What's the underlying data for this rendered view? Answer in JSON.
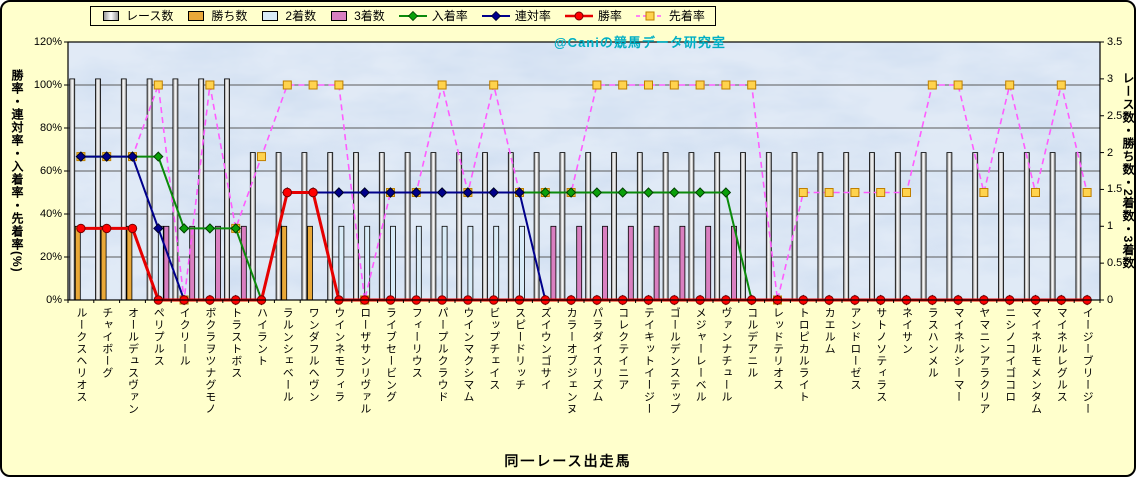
{
  "watermark": "@Caniの競馬データ研究室",
  "legend": [
    {
      "label": "レース数",
      "swatch": "race-bar"
    },
    {
      "label": "勝ち数",
      "swatch": "win-bar"
    },
    {
      "label": "2着数",
      "swatch": "second-bar"
    },
    {
      "label": "3着数",
      "swatch": "third-bar"
    },
    {
      "label": "入着率",
      "swatch": "place-line"
    },
    {
      "label": "連対率",
      "swatch": "quinella-line"
    },
    {
      "label": "勝率",
      "swatch": "win-line"
    },
    {
      "label": "先着率",
      "swatch": "first-line"
    }
  ],
  "colors": {
    "page_bg": "#FFFFCC",
    "plot_bg": "#C8D9EF",
    "grid": "#5A5A5A",
    "race_bar_center": "#FFFFFF",
    "race_bar_edge": "#909090",
    "win_bar": "#E9A838",
    "second_bar": "#D9ECF8",
    "third_bar": "#D97FC0",
    "place_line": "#0B8A0B",
    "place_marker": "#0AA00A",
    "quinella_line": "#00008B",
    "win_line": "#E60000",
    "win_marker": "#FF0000",
    "first_line": "#FF5CFF",
    "first_marker_fill": "#FFD34D",
    "first_marker_stroke": "#BF7F00",
    "watermark": "#00AFC4",
    "text": "#000000"
  },
  "chart_data": {
    "type": "combo-bar-line",
    "grid": true,
    "legend_position": "top",
    "xlabel": "同一レース出走馬",
    "left_axis": {
      "title": "勝率・連対率・入着率・先着率(%)",
      "min": 0,
      "max": 120,
      "step": 20,
      "ticks": [
        "0%",
        "20%",
        "40%",
        "60%",
        "80%",
        "100%",
        "120%"
      ]
    },
    "right_axis": {
      "title": "レース数・勝ち数・2着数・3着数",
      "min": 0,
      "max": 3.5,
      "step": 0.5,
      "ticks": [
        "0",
        "0.5",
        "1",
        "1.5",
        "2",
        "2.5",
        "3",
        "3.5"
      ]
    },
    "categories": [
      "ルークスヘリオス",
      "チャイボーグ",
      "オールデュスヴァン",
      "ペリプルス",
      "イクリール",
      "ボクラヲツナグモノ",
      "トラストボス",
      "ハイラント",
      "ラルンシェベール",
      "ワンダフルヘヴン",
      "ウインネモフィラ",
      "ローザサンリヴァル",
      "ライブセービング",
      "フィーリウス",
      "パープルクラウド",
      "ウインマクシマム",
      "ビップチェイス",
      "スピードリッチ",
      "ズイウンゴサイ",
      "カラーオブジェンヌ",
      "パラダイスリズム",
      "コレクテイニア",
      "テイキットイージー",
      "ゴールデンステップ",
      "メジャーレーベル",
      "ヴァンナチュール",
      "コルデアニル",
      "レッドテリオス",
      "トロピカルライト",
      "カエルム",
      "アンドローゼス",
      "サトノソティラス",
      "ネイサン",
      "ラスハンメル",
      "マイネルシーマー",
      "ヤマニンアラクリア",
      "ニシノコイゴコロ",
      "マイネルモメンタム",
      "マイネルレグルス",
      "イージーブリージー"
    ],
    "series": [
      {
        "name": "レース数",
        "type": "bar",
        "axis": "right",
        "values": [
          3,
          3,
          3,
          3,
          3,
          3,
          3,
          2,
          2,
          2,
          2,
          2,
          2,
          2,
          2,
          2,
          2,
          2,
          2,
          2,
          2,
          2,
          2,
          2,
          2,
          2,
          2,
          2,
          2,
          2,
          2,
          2,
          2,
          2,
          2,
          2,
          2,
          2,
          2,
          2
        ]
      },
      {
        "name": "勝ち数",
        "type": "bar",
        "axis": "right",
        "values": [
          1,
          1,
          1,
          0,
          0,
          0,
          0,
          0,
          1,
          1,
          0,
          0,
          0,
          0,
          0,
          0,
          0,
          0,
          0,
          0,
          0,
          0,
          0,
          0,
          0,
          0,
          0,
          0,
          0,
          0,
          0,
          0,
          0,
          0,
          0,
          0,
          0,
          0,
          0,
          0
        ]
      },
      {
        "name": "2着数",
        "type": "bar",
        "axis": "right",
        "values": [
          0,
          0,
          0,
          1,
          0,
          0,
          0,
          0,
          0,
          0,
          1,
          1,
          1,
          1,
          1,
          1,
          1,
          1,
          0,
          0,
          0,
          0,
          0,
          0,
          0,
          0,
          0,
          0,
          0,
          0,
          0,
          0,
          0,
          0,
          0,
          0,
          0,
          0,
          0,
          0
        ]
      },
      {
        "name": "3着数",
        "type": "bar",
        "axis": "right",
        "values": [
          0,
          0,
          0,
          1,
          1,
          1,
          1,
          0,
          0,
          0,
          0,
          0,
          0,
          0,
          0,
          0,
          0,
          0,
          1,
          1,
          1,
          1,
          1,
          1,
          1,
          1,
          0,
          0,
          0,
          0,
          0,
          0,
          0,
          0,
          0,
          0,
          0,
          0,
          0,
          0
        ]
      },
      {
        "name": "入着率",
        "type": "line",
        "marker": "diamond",
        "axis": "left",
        "values": [
          66.7,
          66.7,
          66.7,
          66.7,
          33.3,
          33.3,
          33.3,
          0,
          50,
          50,
          50,
          50,
          50,
          50,
          50,
          50,
          50,
          50,
          50,
          50,
          50,
          50,
          50,
          50,
          50,
          50,
          0,
          0,
          0,
          0,
          0,
          0,
          0,
          0,
          0,
          0,
          0,
          0,
          0,
          0
        ]
      },
      {
        "name": "連対率",
        "type": "line",
        "marker": "diamond",
        "axis": "left",
        "values": [
          66.7,
          66.7,
          66.7,
          33.3,
          0,
          0,
          0,
          0,
          50,
          50,
          50,
          50,
          50,
          50,
          50,
          50,
          50,
          50,
          0,
          0,
          0,
          0,
          0,
          0,
          0,
          0,
          0,
          0,
          0,
          0,
          0,
          0,
          0,
          0,
          0,
          0,
          0,
          0,
          0,
          0
        ]
      },
      {
        "name": "勝率",
        "type": "line",
        "marker": "circle",
        "axis": "left",
        "values": [
          33.3,
          33.3,
          33.3,
          0,
          0,
          0,
          0,
          0,
          50,
          50,
          0,
          0,
          0,
          0,
          0,
          0,
          0,
          0,
          0,
          0,
          0,
          0,
          0,
          0,
          0,
          0,
          0,
          0,
          0,
          0,
          0,
          0,
          0,
          0,
          0,
          0,
          0,
          0,
          0,
          0
        ]
      },
      {
        "name": "先着率",
        "type": "line-dashed",
        "marker": "square",
        "axis": "left",
        "values": [
          66.7,
          66.7,
          66.7,
          100,
          0,
          100,
          33.3,
          66.7,
          100,
          100,
          100,
          0,
          50,
          50,
          100,
          50,
          100,
          50,
          50,
          50,
          100,
          100,
          100,
          100,
          100,
          100,
          100,
          0,
          50,
          50,
          50,
          50,
          50,
          100,
          100,
          50,
          100,
          50,
          100,
          50
        ]
      }
    ]
  }
}
